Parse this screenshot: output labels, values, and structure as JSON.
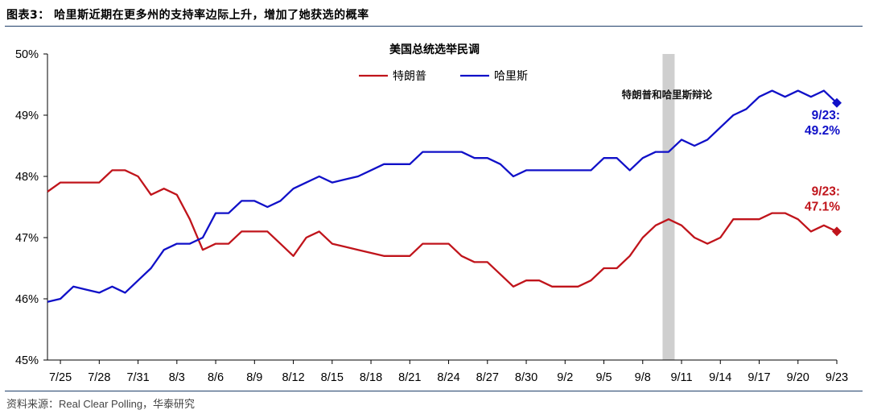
{
  "header": {
    "title": "图表3： 哈里斯近期在更多州的支持率边际上升，增加了她获选的概率"
  },
  "footer": {
    "source": "资料来源：Real Clear Polling，华泰研究"
  },
  "chart_data": {
    "type": "line",
    "title": "美国总统选举民调",
    "xlabel": "",
    "ylabel": "",
    "ylim": [
      45,
      50
    ],
    "yticks": [
      "45%",
      "46%",
      "47%",
      "48%",
      "49%",
      "50%"
    ],
    "x_tick_labels": [
      "7/25",
      "7/28",
      "7/31",
      "8/3",
      "8/6",
      "8/9",
      "8/12",
      "8/15",
      "8/18",
      "8/21",
      "8/24",
      "8/27",
      "8/30",
      "9/2",
      "9/5",
      "9/8",
      "9/11",
      "9/14",
      "9/17",
      "9/20",
      "9/23"
    ],
    "grid": false,
    "legend_position": "top-center",
    "x": [
      "7/24",
      "7/25",
      "7/26",
      "7/27",
      "7/28",
      "7/29",
      "7/30",
      "7/31",
      "8/1",
      "8/2",
      "8/3",
      "8/4",
      "8/5",
      "8/6",
      "8/7",
      "8/8",
      "8/9",
      "8/10",
      "8/11",
      "8/12",
      "8/13",
      "8/14",
      "8/15",
      "8/16",
      "8/17",
      "8/18",
      "8/19",
      "8/20",
      "8/21",
      "8/22",
      "8/23",
      "8/24",
      "8/25",
      "8/26",
      "8/27",
      "8/28",
      "8/29",
      "8/30",
      "8/31",
      "9/1",
      "9/2",
      "9/3",
      "9/4",
      "9/5",
      "9/6",
      "9/7",
      "9/8",
      "9/9",
      "9/10",
      "9/11",
      "9/12",
      "9/13",
      "9/14",
      "9/15",
      "9/16",
      "9/17",
      "9/18",
      "9/19",
      "9/20",
      "9/21",
      "9/22",
      "9/23"
    ],
    "series": [
      {
        "name": "特朗普",
        "color": "#c0141b",
        "values": [
          47.75,
          47.9,
          47.9,
          47.9,
          47.9,
          48.1,
          48.1,
          48.0,
          47.7,
          47.8,
          47.7,
          47.3,
          46.8,
          46.9,
          46.9,
          47.1,
          47.1,
          47.1,
          46.9,
          46.7,
          47.0,
          47.1,
          46.9,
          46.85,
          46.8,
          46.75,
          46.7,
          46.7,
          46.7,
          46.9,
          46.9,
          46.9,
          46.7,
          46.6,
          46.6,
          46.4,
          46.2,
          46.3,
          46.3,
          46.2,
          46.2,
          46.2,
          46.3,
          46.5,
          46.5,
          46.7,
          47.0,
          47.2,
          47.3,
          47.2,
          47.0,
          46.9,
          47.0,
          47.3,
          47.3,
          47.3,
          47.4,
          47.4,
          47.3,
          47.1,
          47.2,
          47.1
        ],
        "end_label_date": "9/23:",
        "end_label_value": "47.1%"
      },
      {
        "name": "哈里斯",
        "color": "#1010c8",
        "values": [
          45.95,
          46.0,
          46.2,
          46.15,
          46.1,
          46.2,
          46.1,
          46.3,
          46.5,
          46.8,
          46.9,
          46.9,
          47.0,
          47.4,
          47.4,
          47.6,
          47.6,
          47.5,
          47.6,
          47.8,
          47.9,
          48.0,
          47.9,
          47.95,
          48.0,
          48.1,
          48.2,
          48.2,
          48.2,
          48.4,
          48.4,
          48.4,
          48.4,
          48.3,
          48.3,
          48.2,
          48.0,
          48.1,
          48.1,
          48.1,
          48.1,
          48.1,
          48.1,
          48.3,
          48.3,
          48.1,
          48.3,
          48.4,
          48.4,
          48.6,
          48.5,
          48.6,
          48.8,
          49.0,
          49.1,
          49.3,
          49.4,
          49.3,
          49.4,
          49.3,
          49.4,
          49.2
        ],
        "end_label_date": "9/23:",
        "end_label_value": "49.2%"
      }
    ],
    "annotations": [
      {
        "text": "特朗普和哈里斯辩论",
        "shaded_date": "9/10"
      }
    ]
  }
}
